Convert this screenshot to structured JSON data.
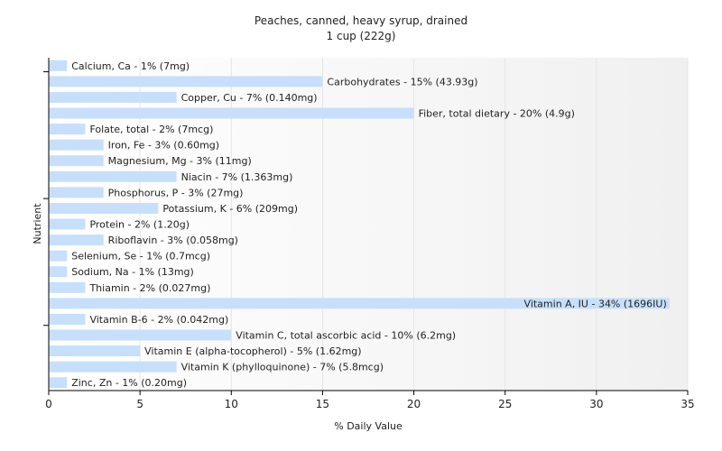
{
  "chart_data": {
    "type": "bar",
    "orientation": "horizontal",
    "title": "Peaches, canned, heavy syrup, drained",
    "subtitle": "1 cup (222g)",
    "xlabel": "% Daily Value",
    "ylabel": "Nutrient",
    "xlim": [
      0,
      35
    ],
    "xticks": [
      0,
      5,
      10,
      15,
      20,
      25,
      30,
      35
    ],
    "grid": true,
    "legend": "none",
    "colors": {
      "bar": "#c7dffb",
      "grid": "#e6e6e6",
      "axis": "#000000",
      "plot_bg_left": "#ffffff",
      "plot_bg_right": "#f2f2f2"
    },
    "categories": [
      "Calcium, Ca",
      "Carbohydrates",
      "Copper, Cu",
      "Fiber, total dietary",
      "Folate, total",
      "Iron, Fe",
      "Magnesium, Mg",
      "Niacin",
      "Phosphorus, P",
      "Potassium, K",
      "Protein",
      "Riboflavin",
      "Selenium, Se",
      "Sodium, Na",
      "Thiamin",
      "Vitamin A, IU",
      "Vitamin B-6",
      "Vitamin C, total ascorbic acid",
      "Vitamin E (alpha-tocopherol)",
      "Vitamin K (phylloquinone)",
      "Zinc, Zn"
    ],
    "values": [
      1,
      15,
      7,
      20,
      2,
      3,
      3,
      7,
      3,
      6,
      2,
      3,
      1,
      1,
      2,
      34,
      2,
      10,
      5,
      7,
      1
    ],
    "labels": [
      "Calcium, Ca - 1% (7mg)",
      "Carbohydrates - 15% (43.93g)",
      "Copper, Cu - 7% (0.140mg)",
      "Fiber, total dietary - 20% (4.9g)",
      "Folate, total - 2% (7mcg)",
      "Iron, Fe - 3% (0.60mg)",
      "Magnesium, Mg - 3% (11mg)",
      "Niacin - 7% (1.363mg)",
      "Phosphorus, P - 3% (27mg)",
      "Potassium, K - 6% (209mg)",
      "Protein - 2% (1.20g)",
      "Riboflavin - 3% (0.058mg)",
      "Selenium, Se - 1% (0.7mcg)",
      "Sodium, Na - 1% (13mg)",
      "Thiamin - 2% (0.027mg)",
      "Vitamin A, IU - 34% (1696IU)",
      "Vitamin B-6 - 2% (0.042mg)",
      "Vitamin C, total ascorbic acid - 10% (6.2mg)",
      "Vitamin E (alpha-tocopherol) - 5% (1.62mg)",
      "Vitamin K (phylloquinone) - 7% (5.8mcg)",
      "Zinc, Zn - 1% (0.20mg)"
    ]
  }
}
